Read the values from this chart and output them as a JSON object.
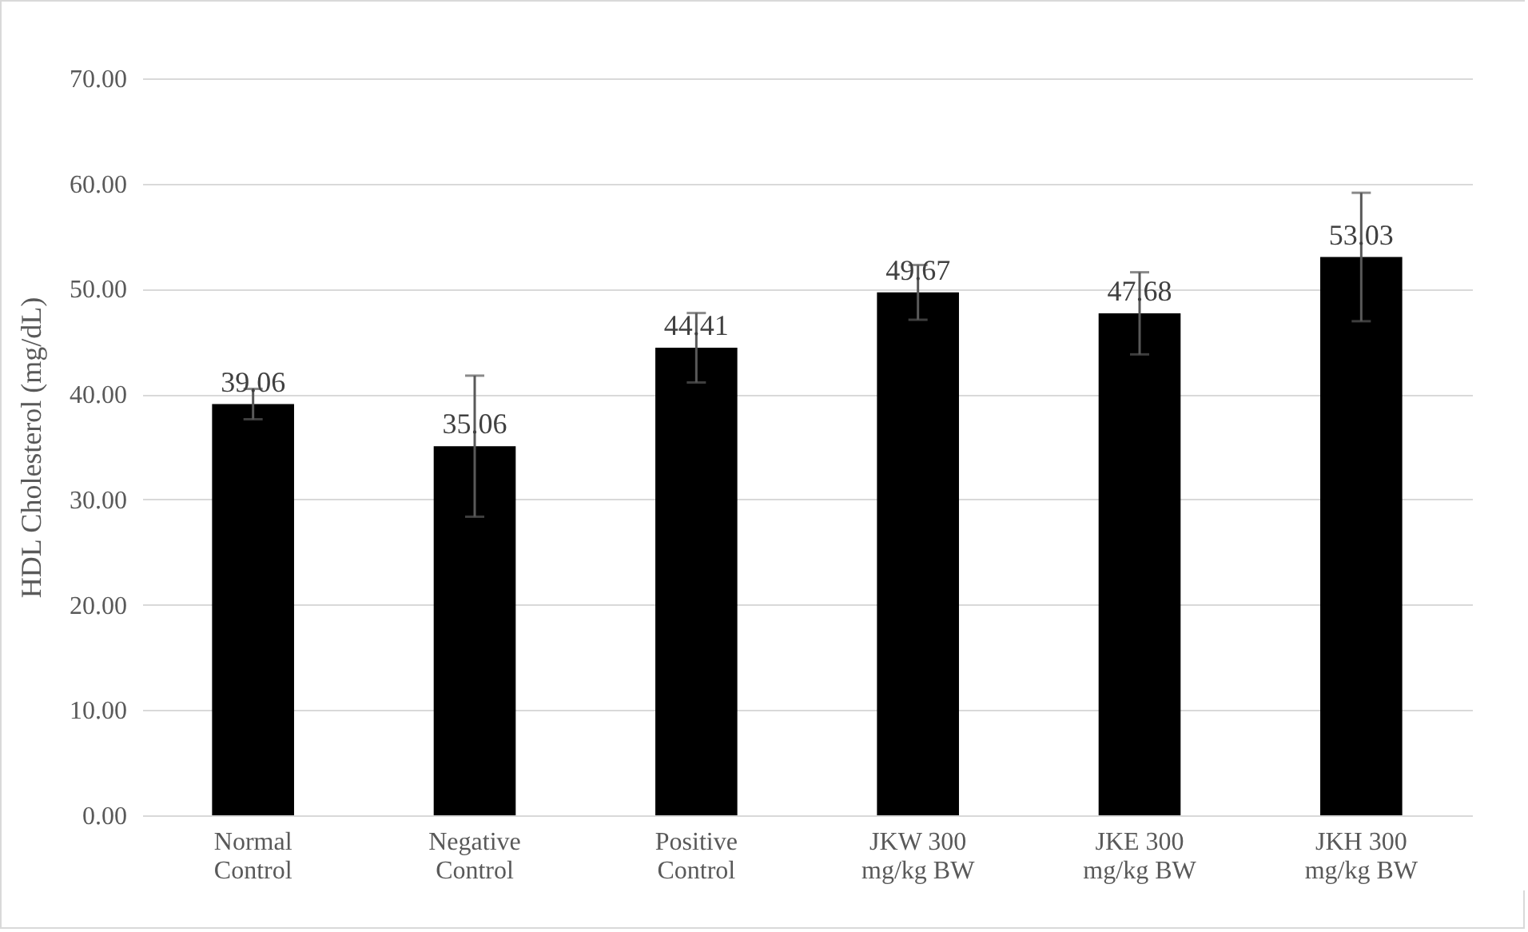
{
  "chart_data": {
    "type": "bar",
    "ylabel": "HDL Cholesterol (mg/dL)",
    "categories": [
      "Normal Control",
      "Negative Control",
      "Positive Control",
      "JKW 300 mg/kg BW",
      "JKE 300 mg/kg BW",
      "JKH 300 mg/kg BW"
    ],
    "values": [
      39.06,
      35.06,
      44.41,
      49.67,
      47.68,
      53.03
    ],
    "errors": [
      1.45,
      6.7,
      3.3,
      2.6,
      3.9,
      6.1
    ],
    "color": "#000000",
    "data_labels": true,
    "ylim": [
      0,
      70
    ],
    "yticks": [
      {
        "value": 0,
        "label": "0.00"
      },
      {
        "value": 10,
        "label": "10.00"
      },
      {
        "value": 20,
        "label": "20.00"
      },
      {
        "value": 30,
        "label": "30.00"
      },
      {
        "value": 40,
        "label": "40.00"
      },
      {
        "value": 50,
        "label": "50.00"
      },
      {
        "value": 60,
        "label": "60.00"
      },
      {
        "value": 70,
        "label": "70.00"
      }
    ],
    "grid": "y"
  }
}
